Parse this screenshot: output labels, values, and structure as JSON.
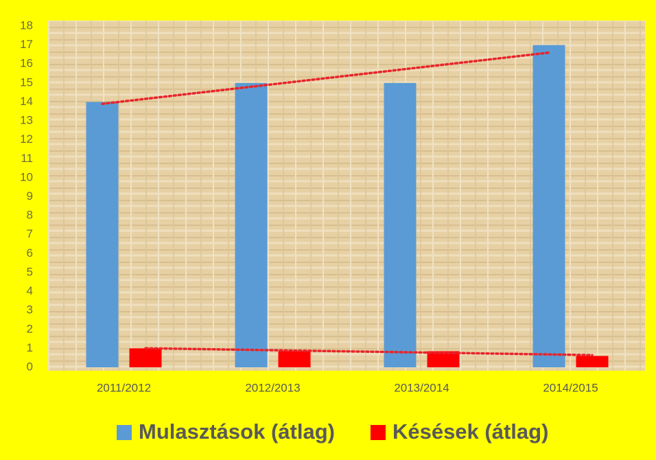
{
  "chart_data": {
    "type": "bar",
    "categories": [
      "2011/2012",
      "2012/2013",
      "2013/2014",
      "2014/2015"
    ],
    "series": [
      {
        "name": "Mulasztások (átlag)",
        "color": "#5b9bd5",
        "values": [
          14,
          15,
          15,
          17
        ]
      },
      {
        "name": "Késések (átlag)",
        "color": "#ff0000",
        "values": [
          1,
          0.85,
          0.85,
          0.6
        ]
      }
    ],
    "ylim": [
      0,
      18
    ],
    "yticks": [
      0,
      1,
      2,
      3,
      4,
      5,
      6,
      7,
      8,
      9,
      10,
      11,
      12,
      13,
      14,
      15,
      16,
      17,
      18
    ],
    "trendline": true,
    "trendline_color": "#e8242a",
    "legend": "bottom"
  }
}
